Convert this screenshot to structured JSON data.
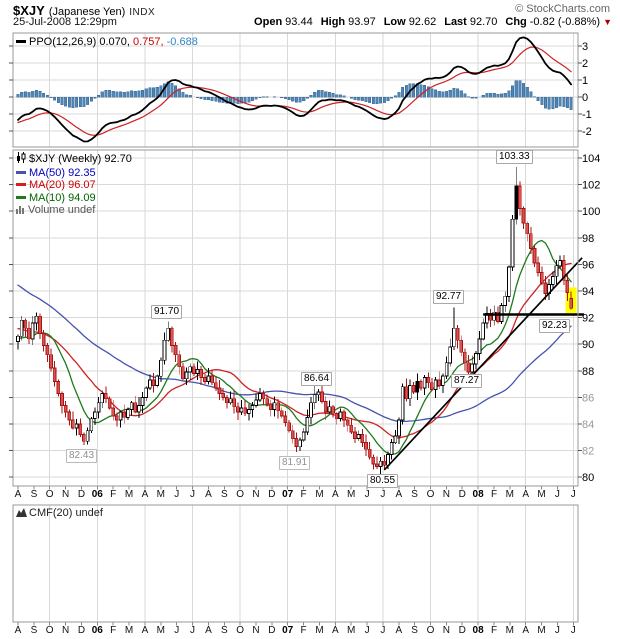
{
  "header": {
    "symbol": "$XJY",
    "name": "(Japanese Yen)",
    "type": "INDX",
    "copyright": "© StockCharts.com",
    "datetime": "25-Jul-2008 12:29pm",
    "quote": [
      {
        "label": "Open",
        "value": "93.44"
      },
      {
        "label": "High",
        "value": "93.97"
      },
      {
        "label": "Low",
        "value": "92.62"
      },
      {
        "label": "Last",
        "value": "92.70"
      },
      {
        "label": "Chg",
        "value": "-0.82 (-0.88%)"
      }
    ],
    "change_direction": "down"
  },
  "ppo_panel": {
    "label": "PPO(12,26,9)",
    "ppo_value": "0.070,",
    "signal_value": "0.757,",
    "hist_value": "-0.688"
  },
  "main_panel": {
    "title": "$XJY (Weekly) 92.70",
    "ma50": "MA(50) 92.35",
    "ma20": "MA(20) 96.07",
    "ma10": "MA(10) 94.09",
    "volume": "Volume undef"
  },
  "cmf_panel": {
    "label": "CMF(20) undef"
  },
  "chart_data": {
    "type": "candlestick",
    "symbol": "$XJY",
    "timeframe": "Weekly",
    "x_axis_months": [
      "A",
      "S",
      "O",
      "N",
      "D",
      "06",
      "F",
      "M",
      "A",
      "M",
      "J",
      "J",
      "A",
      "S",
      "O",
      "N",
      "D",
      "07",
      "F",
      "M",
      "A",
      "M",
      "J",
      "J",
      "A",
      "S",
      "O",
      "N",
      "D",
      "08",
      "F",
      "M",
      "A",
      "M",
      "J",
      "J"
    ],
    "y_ticks": [
      104,
      102,
      100,
      98,
      96,
      94,
      92,
      90,
      88,
      86,
      84,
      82,
      80
    ],
    "y_ticks_gray": [
      86,
      84,
      82
    ],
    "ylim": [
      79.3,
      104.6
    ],
    "ppo": {
      "fast": 12,
      "slow": 26,
      "signal": 9,
      "last_ppo": 0.07,
      "last_signal": 0.757,
      "last_hist": -0.688,
      "ticks": [
        3,
        2,
        1,
        0,
        -1,
        -2
      ],
      "line_color": "#000000",
      "signal_color": "#cc2222",
      "hist_color": "#4f86b8"
    },
    "prehistory_closes": [
      102.0,
      101.5,
      100.9,
      100.4,
      100.0,
      99.3,
      98.8,
      99.1,
      98.5,
      98.0,
      97.6,
      97.9,
      97.3,
      96.8,
      97.1,
      96.5,
      96.0,
      96.3,
      95.7,
      95.3,
      95.6,
      95.0,
      94.6,
      94.9,
      94.3,
      93.9,
      94.2,
      93.6,
      93.2,
      93.5,
      93.0,
      92.6,
      92.9,
      92.3,
      92.0,
      92.3,
      91.7,
      91.4,
      91.8,
      91.2,
      90.9,
      91.3,
      90.7,
      90.4,
      90.8,
      90.2,
      89.9,
      90.3,
      89.8,
      90.2
    ],
    "weekly_closes": [
      90.6,
      91.8,
      91.2,
      90.4,
      91.6,
      92.1,
      90.8,
      89.9,
      89.2,
      88.2,
      87.2,
      86.3,
      85.4,
      84.9,
      84.3,
      83.7,
      84.0,
      83.2,
      82.7,
      83.5,
      84.4,
      84.9,
      85.6,
      86.3,
      85.9,
      85.2,
      84.6,
      84.3,
      84.9,
      84.5,
      85.1,
      85.6,
      84.9,
      85.4,
      86.0,
      86.7,
      87.3,
      86.9,
      87.6,
      88.8,
      90.3,
      91.2,
      89.9,
      89.2,
      88.3,
      87.4,
      87.9,
      88.3,
      87.8,
      88.1,
      87.5,
      87.2,
      87.6,
      87.1,
      86.7,
      86.3,
      86.0,
      85.6,
      85.9,
      85.3,
      84.9,
      85.2,
      84.8,
      85.1,
      85.4,
      85.8,
      86.3,
      85.9,
      85.5,
      85.1,
      85.6,
      85.0,
      84.6,
      84.1,
      83.5,
      82.9,
      82.3,
      82.8,
      83.4,
      84.5,
      85.6,
      86.2,
      86.4,
      85.7,
      84.9,
      85.3,
      84.8,
      84.4,
      84.9,
      84.3,
      83.9,
      83.4,
      82.9,
      83.2,
      82.6,
      82.1,
      81.5,
      81.0,
      80.8,
      81.2,
      80.9,
      81.7,
      82.6,
      83.1,
      84.3,
      86.8,
      85.9,
      86.9,
      86.4,
      87.2,
      86.7,
      87.5,
      87.1,
      86.6,
      87.3,
      86.9,
      87.6,
      88.6,
      89.8,
      91.2,
      90.3,
      89.4,
      88.6,
      87.9,
      88.5,
      89.3,
      90.4,
      91.6,
      92.3,
      91.8,
      92.4,
      91.7,
      92.9,
      93.6,
      95.8,
      99.4,
      101.9,
      100.2,
      99.1,
      98.3,
      97.2,
      96.1,
      95.4,
      94.6,
      93.8,
      94.5,
      95.1,
      95.9,
      96.3,
      94.8,
      93.9,
      92.7
    ],
    "candle_overrides": {
      "18": {
        "low": 82.43
      },
      "41": {
        "high": 91.7
      },
      "76": {
        "low": 81.91
      },
      "82": {
        "high": 86.64
      },
      "100": {
        "low": 80.55
      },
      "119": {
        "high": 92.77
      },
      "123": {
        "low": 87.27
      },
      "136": {
        "high": 103.33
      },
      "151": {
        "open": 93.44,
        "high": 93.97,
        "low": 92.62,
        "close": 92.7
      }
    },
    "black_candles": [
      109,
      136
    ],
    "highlighted_candle": 151,
    "highlight_color": "#ffff00",
    "annotations": [
      {
        "text": "91.70",
        "week": 41,
        "price": 91.7,
        "side": "above",
        "color": "black"
      },
      {
        "text": "82.43",
        "week": 18,
        "price": 82.43,
        "side": "below",
        "color": "gray"
      },
      {
        "text": "86.64",
        "week": 82,
        "price": 86.64,
        "side": "above",
        "color": "black"
      },
      {
        "text": "81.91",
        "week": 76,
        "price": 81.91,
        "side": "below",
        "color": "gray"
      },
      {
        "text": "80.55",
        "week": 100,
        "price": 80.55,
        "side": "below",
        "color": "black"
      },
      {
        "text": "87.27",
        "week": 123,
        "price": 87.27,
        "side": "on",
        "color": "black"
      },
      {
        "text": "92.77",
        "week": 118,
        "price": 92.77,
        "side": "above",
        "color": "black"
      },
      {
        "text": "103.33",
        "week": 136,
        "price": 103.33,
        "side": "above",
        "color": "black"
      },
      {
        "text": "92.23",
        "week": 147,
        "price": 92.23,
        "side": "below",
        "color": "black"
      }
    ],
    "trendline": {
      "from_week": 100,
      "from_price": 80.55,
      "to_week": 154,
      "to_price": 96.5
    },
    "support_line": {
      "price": 92.23,
      "from_week": 127,
      "to_week": 154.5
    },
    "moving_averages": [
      {
        "period": 50,
        "color": "#4553ae",
        "value": 92.35
      },
      {
        "period": 20,
        "color": "#cc2222",
        "value": 96.07
      },
      {
        "period": 10,
        "color": "#1d7a1d",
        "value": 94.09
      }
    ],
    "colors": {
      "up": "#ffffff",
      "up_stroke": "#000000",
      "down": "#d65353",
      "down_stroke": "#aa1111",
      "grid": "#d9d9d9",
      "border": "#999999",
      "axis_text": "#000000",
      "axis_text_gray": "#999999"
    }
  }
}
